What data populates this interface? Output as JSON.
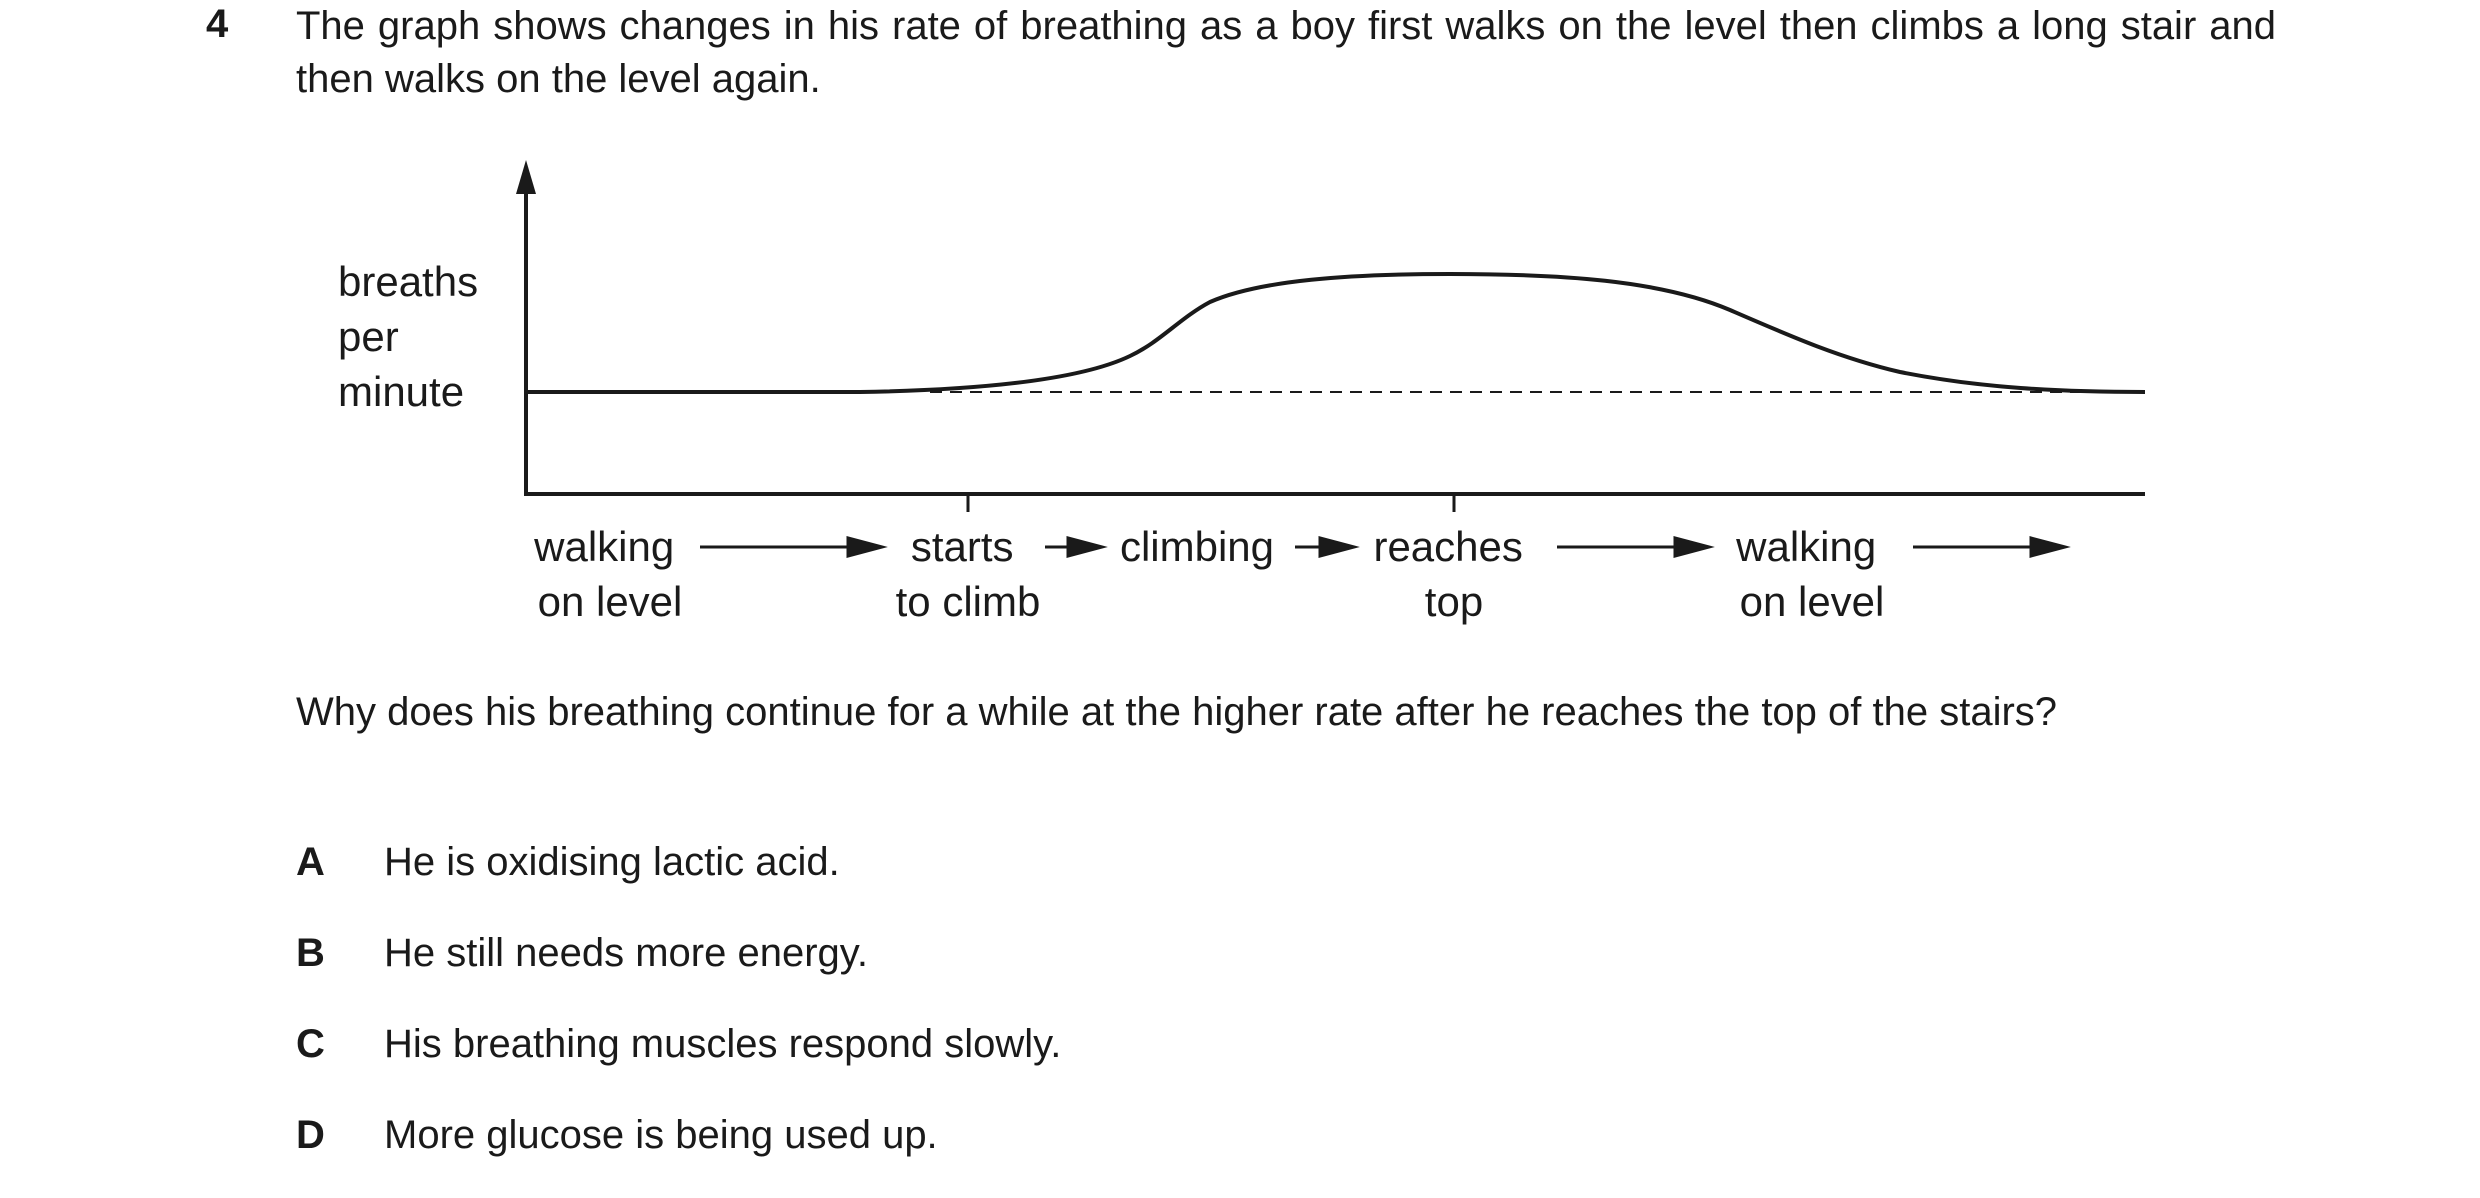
{
  "question": {
    "number": "4",
    "intro": "The graph shows changes in his rate of breathing as a boy first walks on the level then climbs a long stair and then walks on the level again.",
    "stem": "Why does his breathing continue for a while at the higher rate after he reaches the top of the stairs?"
  },
  "graph": {
    "y_axis_label": [
      "breaths",
      "per",
      "minute"
    ],
    "x_labels": [
      {
        "lines": [
          "walking",
          "on level"
        ]
      },
      {
        "lines": [
          "starts",
          "to climb"
        ]
      },
      {
        "lines": [
          "climbing"
        ]
      },
      {
        "lines": [
          "reaches",
          "top"
        ]
      },
      {
        "lines": [
          "walking",
          "on level"
        ]
      }
    ]
  },
  "options": [
    {
      "letter": "A",
      "text": "He is oxidising lactic acid."
    },
    {
      "letter": "B",
      "text": "He still needs more energy."
    },
    {
      "letter": "C",
      "text": "His breathing muscles respond slowly."
    },
    {
      "letter": "D",
      "text": "More glucose is being used up."
    }
  ]
}
